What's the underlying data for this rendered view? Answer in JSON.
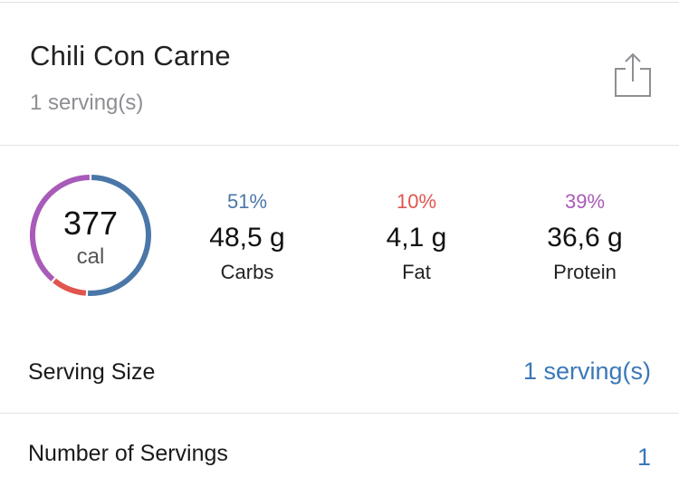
{
  "food": {
    "title": "Chili Con Carne",
    "subtitle": "1 serving(s)"
  },
  "share": {
    "icon": "share-icon"
  },
  "calories": {
    "value": "377",
    "unit": "cal"
  },
  "macros": {
    "carbs": {
      "percent": "51%",
      "grams": "48,5 g",
      "label": "Carbs",
      "color": "#4a77a8",
      "fraction": 0.51
    },
    "fat": {
      "percent": "10%",
      "grams": "4,1 g",
      "label": "Fat",
      "color": "#e0554f",
      "fraction": 0.1
    },
    "protein": {
      "percent": "39%",
      "grams": "36,6 g",
      "label": "Protein",
      "color": "#a95bb9",
      "fraction": 0.39
    }
  },
  "rows": {
    "serving_size": {
      "label": "Serving Size",
      "value": "1 serving(s)"
    },
    "number_of_servings": {
      "label": "Number of Servings",
      "value": "1"
    }
  },
  "colors": {
    "accent": "#3a78b8",
    "divider": "#e2e2e2",
    "secondary_text": "#8e8e93"
  }
}
